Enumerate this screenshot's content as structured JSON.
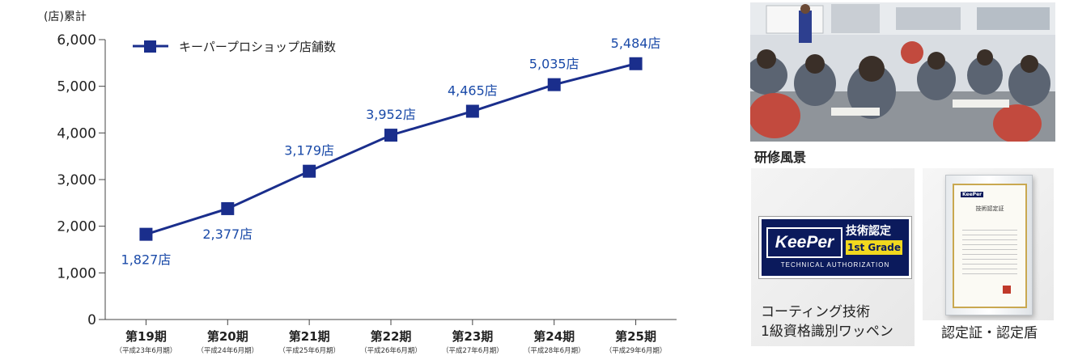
{
  "chart_data": {
    "type": "line",
    "unit_label": "(店)累計",
    "categories": [
      {
        "label": "第19期",
        "sub": "（平成23年6月期）"
      },
      {
        "label": "第20期",
        "sub": "（平成24年6月期）"
      },
      {
        "label": "第21期",
        "sub": "（平成25年6月期）"
      },
      {
        "label": "第22期",
        "sub": "（平成26年6月期）"
      },
      {
        "label": "第23期",
        "sub": "（平成27年6月期）"
      },
      {
        "label": "第24期",
        "sub": "（平成28年6月期）"
      },
      {
        "label": "第25期",
        "sub": "（平成29年6月期）"
      }
    ],
    "series": [
      {
        "name": "キーパープロショップ店舗数",
        "values": [
          1827,
          2377,
          3179,
          3952,
          4465,
          5035,
          5484
        ],
        "labels": [
          "1,827店",
          "2,377店",
          "3,179店",
          "3,952店",
          "4,465店",
          "5,035店",
          "5,484店"
        ],
        "color": "#1a2e8c"
      }
    ],
    "ylim": [
      0,
      6000
    ],
    "yticks": [
      "0",
      "1,000",
      "2,000",
      "3,000",
      "4,000",
      "5,000",
      "6,000"
    ],
    "legend_position": "top-left",
    "label_color": "#1a4aa8",
    "grid": false
  },
  "photos": {
    "training_caption": "研修風景",
    "patch_caption_line1": "コーティング技術",
    "patch_caption_line2": "1級資格識別ワッペン",
    "certificate_caption": "認定証・認定盾",
    "patch": {
      "brand": "KeePer",
      "title": "技術認定",
      "grade": "1st Grade",
      "subtitle": "TECHNICAL  AUTHORIZATION"
    },
    "certificate": {
      "brand": "KeePer",
      "heading": "技術認定証"
    }
  }
}
